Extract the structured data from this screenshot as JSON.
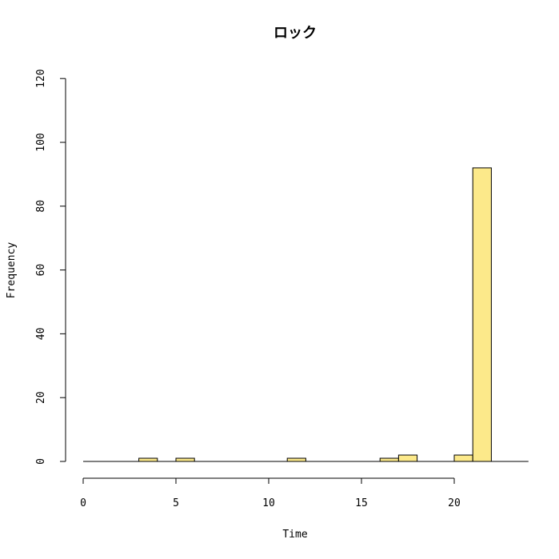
{
  "chart_data": {
    "type": "bar",
    "title": "ロック",
    "xlabel": "Time",
    "ylabel": "Frequency",
    "xlim": [
      0,
      24
    ],
    "ylim": [
      0,
      120
    ],
    "x_ticks": [
      0,
      5,
      10,
      15,
      20
    ],
    "y_ticks": [
      0,
      20,
      40,
      60,
      80,
      100,
      120
    ],
    "bin_width": 1,
    "bins": [
      {
        "start": 0,
        "count": 0
      },
      {
        "start": 1,
        "count": 0
      },
      {
        "start": 2,
        "count": 0
      },
      {
        "start": 3,
        "count": 1
      },
      {
        "start": 4,
        "count": 0
      },
      {
        "start": 5,
        "count": 1
      },
      {
        "start": 6,
        "count": 0
      },
      {
        "start": 7,
        "count": 0
      },
      {
        "start": 8,
        "count": 0
      },
      {
        "start": 9,
        "count": 0
      },
      {
        "start": 10,
        "count": 0
      },
      {
        "start": 11,
        "count": 1
      },
      {
        "start": 12,
        "count": 0
      },
      {
        "start": 13,
        "count": 0
      },
      {
        "start": 14,
        "count": 0
      },
      {
        "start": 15,
        "count": 0
      },
      {
        "start": 16,
        "count": 1
      },
      {
        "start": 17,
        "count": 2
      },
      {
        "start": 18,
        "count": 0
      },
      {
        "start": 19,
        "count": 0
      },
      {
        "start": 20,
        "count": 2
      },
      {
        "start": 21,
        "count": 92
      },
      {
        "start": 22,
        "count": 0
      },
      {
        "start": 23,
        "count": 0
      }
    ],
    "bar_color": "#fce98a",
    "grid": false
  }
}
